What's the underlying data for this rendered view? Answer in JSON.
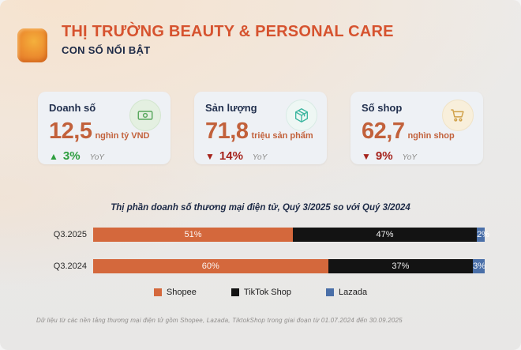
{
  "header": {
    "title": "THỊ TRƯỜNG BEAUTY & PERSONAL CARE",
    "subtitle": "CON SỐ NỔI BẬT"
  },
  "colors": {
    "accent_orange": "#d6532f",
    "stat_value_orange": "#c2613b",
    "positive_green": "#2e9e3f",
    "negative_red": "#a6241d",
    "navy_text": "#1c2946"
  },
  "stats": [
    {
      "label": "Doanh số",
      "value": "12,5",
      "unit": "nghìn tỷ VND",
      "icon": "banknote-icon",
      "direction": "up",
      "arrow": "▲",
      "change": "3%",
      "change_color": "#2e9e3f",
      "period": "YoY"
    },
    {
      "label": "Sản lượng",
      "value": "71,8",
      "unit": "triệu sản phẩm",
      "icon": "package-icon",
      "direction": "down",
      "arrow": "▼",
      "change": "14%",
      "change_color": "#a6241d",
      "period": "YoY"
    },
    {
      "label": "Số shop",
      "value": "62,7",
      "unit": "nghìn shop",
      "icon": "cart-icon",
      "direction": "down",
      "arrow": "▼",
      "change": "9%",
      "change_color": "#a6241d",
      "period": "YoY"
    }
  ],
  "chart_data": {
    "type": "bar",
    "orientation": "horizontal",
    "stacked": true,
    "title": "Thị phần doanh số thương mại điện tử, Quý 3/2025 so với Quý 3/2024",
    "categories": [
      "Q3.2025",
      "Q3.2024"
    ],
    "series": [
      {
        "name": "Shopee",
        "color": "#d4683c",
        "values": [
          51,
          60
        ]
      },
      {
        "name": "TikTok Shop",
        "color": "#131313",
        "values": [
          47,
          37
        ]
      },
      {
        "name": "Lazada",
        "color": "#4a6fa8",
        "values": [
          2,
          3
        ]
      }
    ],
    "value_suffix": "%",
    "xlim": [
      0,
      100
    ],
    "grid": false,
    "legend_position": "bottom"
  },
  "footer": {
    "note": "Dữ liệu từ các nền tảng thương mại điện tử gồm Shopee, Lazada, TiktokShop trong giai đoạn từ 01.07.2024 đến 30.09.2025"
  }
}
